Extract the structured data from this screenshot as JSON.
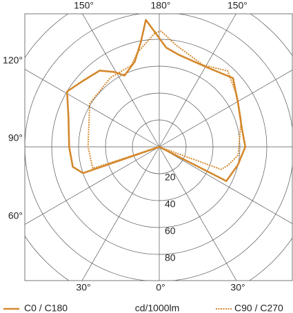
{
  "chart_data": {
    "type": "polar",
    "unit_label": "cd/1000lm",
    "rlim": [
      0,
      120
    ],
    "rticks": [
      20,
      40,
      60,
      80,
      {
        "value": 100,
        "label": null
      },
      {
        "value": 120,
        "label": null
      }
    ],
    "thetaticks": [
      {
        "value": 0,
        "label": "0°"
      },
      {
        "value": 30,
        "label": "30°"
      },
      {
        "value": 60,
        "label": "60°"
      },
      {
        "value": 90,
        "label": "90°"
      },
      {
        "value": 120,
        "label": "120°"
      },
      {
        "value": 150,
        "label": "150°"
      },
      {
        "value": 180,
        "label": "180°"
      },
      {
        "value": 210,
        "label": "150°"
      },
      {
        "value": 240,
        "label": "120°"
      },
      {
        "value": 270,
        "label": "90°"
      },
      {
        "value": 300,
        "label": "60°"
      },
      {
        "value": 330,
        "label": "30°"
      }
    ],
    "grid": true,
    "series": [
      {
        "name": "C0 / C180",
        "color": "#d4882c",
        "dash": false,
        "theta": [
          62,
          63,
          77,
          90,
          103,
          119,
          133,
          149,
          168,
          176,
          186,
          190,
          196,
          206,
          211,
          218,
          229,
          239,
          252,
          270,
          283,
          289,
          290
        ],
        "values": [
          0,
          56,
          60,
          64,
          63,
          67,
          75,
          69,
          70,
          74,
          95,
          79,
          66,
          59,
          65,
          72,
          75,
          80,
          71,
          67,
          66,
          60,
          0
        ]
      },
      {
        "name": "C90 / C270",
        "color": "#d4882c",
        "dash": true,
        "theta": [
          69,
          70,
          75,
          84,
          108,
          123,
          138,
          152,
          171,
          179,
          182,
          193,
          199,
          215,
          238,
          270,
          288,
          290
        ],
        "values": [
          0,
          49,
          53,
          59,
          64,
          69,
          76,
          69,
          77,
          86,
          85,
          72,
          64,
          63,
          61,
          53,
          52,
          0
        ]
      }
    ]
  }
}
